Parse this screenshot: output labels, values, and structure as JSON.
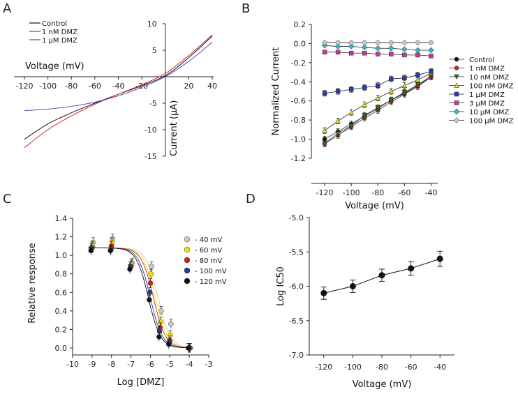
{
  "panels": {
    "A": {
      "letter": "A"
    },
    "B": {
      "letter": "B"
    },
    "C": {
      "letter": "C"
    },
    "D": {
      "letter": "D"
    }
  },
  "chart_data": [
    {
      "panel": "A",
      "type": "line",
      "xlabel": "Voltage (mV)",
      "ylabel": "Current (μA)",
      "xlim": [
        -120,
        40
      ],
      "ylim": [
        -15,
        10
      ],
      "xticks": [
        -120,
        -100,
        -80,
        -60,
        -40,
        -20,
        20,
        40
      ],
      "yticks": [
        10,
        5,
        -5,
        -10,
        -15
      ],
      "legend_position": "top-left",
      "x": [
        -120,
        -100,
        -80,
        -60,
        -40,
        -20,
        0,
        20,
        40
      ],
      "series": [
        {
          "name": "Control",
          "color": "#111111",
          "values": [
            -11.8,
            -8.9,
            -6.8,
            -5.0,
            -3.3,
            -1.7,
            0.2,
            3.6,
            7.7
          ]
        },
        {
          "name": "1 nM DMZ",
          "color": "#e02020",
          "values": [
            -13.4,
            -10.0,
            -7.4,
            -5.2,
            -3.3,
            -1.5,
            0.6,
            4.0,
            7.9
          ]
        },
        {
          "name": "1 μM DMZ",
          "color": "#4b4bbf",
          "values": [
            -6.4,
            -6.1,
            -5.6,
            -4.8,
            -3.6,
            -2.0,
            0.0,
            2.9,
            6.5
          ]
        }
      ]
    },
    {
      "panel": "B",
      "type": "line",
      "xlabel": "Voltage (mV)",
      "ylabel": "Normalized Current",
      "xlim": [
        -130,
        -35
      ],
      "ylim": [
        -1.2,
        0.2
      ],
      "xticks": [
        -120,
        -100,
        -80,
        -60,
        -40
      ],
      "yticks": [
        0.2,
        0.0,
        -0.2,
        -0.4,
        -0.6,
        -0.8,
        -1.0,
        -1.2
      ],
      "legend_position": "right",
      "x": [
        -120,
        -110,
        -100,
        -90,
        -80,
        -70,
        -60,
        -50,
        -40
      ],
      "series": [
        {
          "name": "Control",
          "color": "#111111",
          "marker": "circle",
          "values": [
            -1.0,
            -0.92,
            -0.84,
            -0.76,
            -0.68,
            -0.59,
            -0.52,
            -0.44,
            -0.35
          ]
        },
        {
          "name": "1 nM DMZ",
          "color": "#cc2222",
          "marker": "circle",
          "values": [
            -1.05,
            -0.96,
            -0.87,
            -0.78,
            -0.7,
            -0.61,
            -0.53,
            -0.45,
            -0.35
          ]
        },
        {
          "name": "10 nM DMZ",
          "color": "#2a6e2a",
          "marker": "triangle-down",
          "values": [
            -1.04,
            -0.94,
            -0.86,
            -0.75,
            -0.67,
            -0.59,
            -0.51,
            -0.43,
            -0.34
          ]
        },
        {
          "name": "100 nM DMZ",
          "color": "#d8d820",
          "marker": "triangle-up",
          "values": [
            -0.91,
            -0.81,
            -0.72,
            -0.64,
            -0.57,
            -0.5,
            -0.44,
            -0.38,
            -0.31
          ]
        },
        {
          "name": "1 μM DMZ",
          "color": "#2b3ea8",
          "marker": "square",
          "values": [
            -0.52,
            -0.5,
            -0.48,
            -0.46,
            -0.44,
            -0.37,
            -0.36,
            -0.33,
            -0.29
          ]
        },
        {
          "name": "3 μM DMZ",
          "color": "#c23a9a",
          "marker": "square",
          "values": [
            -0.09,
            -0.09,
            -0.1,
            -0.1,
            -0.11,
            -0.11,
            -0.12,
            -0.12,
            -0.13
          ]
        },
        {
          "name": "10 μM DMZ",
          "color": "#35b8c4",
          "marker": "diamond",
          "values": [
            -0.02,
            -0.03,
            -0.03,
            -0.04,
            -0.05,
            -0.05,
            -0.06,
            -0.07,
            -0.07
          ]
        },
        {
          "name": "100 μM DMZ",
          "color": "#c8c8c8",
          "marker": "diamond",
          "values": [
            0.01,
            0.01,
            0.01,
            0.01,
            0.01,
            0.01,
            0.01,
            0.01,
            0.01
          ]
        }
      ]
    },
    {
      "panel": "C",
      "type": "scatter",
      "xlabel": "Log [DMZ]",
      "ylabel": "Relative response",
      "xlim": [
        -10,
        -3
      ],
      "ylim": [
        -0.05,
        1.4
      ],
      "xticks": [
        -10,
        -9,
        -8,
        -7,
        -6,
        -5,
        -4,
        -3
      ],
      "yticks": [
        1.4,
        1.2,
        1.0,
        0.8,
        0.6,
        0.4,
        0.2,
        0.0
      ],
      "legend_position": "top-right",
      "x": [
        -9,
        -8,
        -7,
        -6,
        -5.5,
        -5,
        -4
      ],
      "series": [
        {
          "name": "- 40 mV",
          "color": "#c8c8c8",
          "values": [
            1.14,
            1.18,
            0.92,
            0.88,
            0.4,
            0.26,
            0.0
          ],
          "ic50": -5.6
        },
        {
          "name": "- 60 mV",
          "color": "#f2e200",
          "values": [
            1.1,
            1.14,
            0.9,
            0.8,
            0.28,
            0.14,
            0.0
          ],
          "ic50": -5.74
        },
        {
          "name": "- 80 mV",
          "color": "#cc2222",
          "values": [
            1.08,
            1.1,
            0.88,
            0.7,
            0.22,
            0.08,
            0.0
          ],
          "ic50": -5.84
        },
        {
          "name": "- 100 mV",
          "color": "#2a3aa0",
          "values": [
            1.08,
            1.06,
            0.88,
            0.6,
            0.18,
            0.06,
            0.0
          ],
          "ic50": -6.0
        },
        {
          "name": "- 120 mV",
          "color": "#111111",
          "values": [
            1.05,
            1.05,
            0.85,
            0.52,
            0.12,
            0.04,
            0.0
          ],
          "ic50": -6.1
        }
      ]
    },
    {
      "panel": "D",
      "type": "line",
      "xlabel": "Voltage (mV)",
      "ylabel": "Log IC50",
      "xlim": [
        -130,
        -30
      ],
      "ylim": [
        -7.0,
        -5.0
      ],
      "xticks": [
        -120,
        -100,
        -80,
        -60,
        -40
      ],
      "yticks": [
        -5.0,
        -5.5,
        -6.0,
        -6.5,
        -7.0
      ],
      "x": [
        -120,
        -100,
        -80,
        -60,
        -40
      ],
      "series": [
        {
          "color": "#111111",
          "values": [
            -6.1,
            -6.0,
            -5.84,
            -5.74,
            -5.6
          ],
          "errors": [
            0.09,
            0.09,
            0.09,
            0.1,
            0.11
          ]
        }
      ]
    }
  ]
}
